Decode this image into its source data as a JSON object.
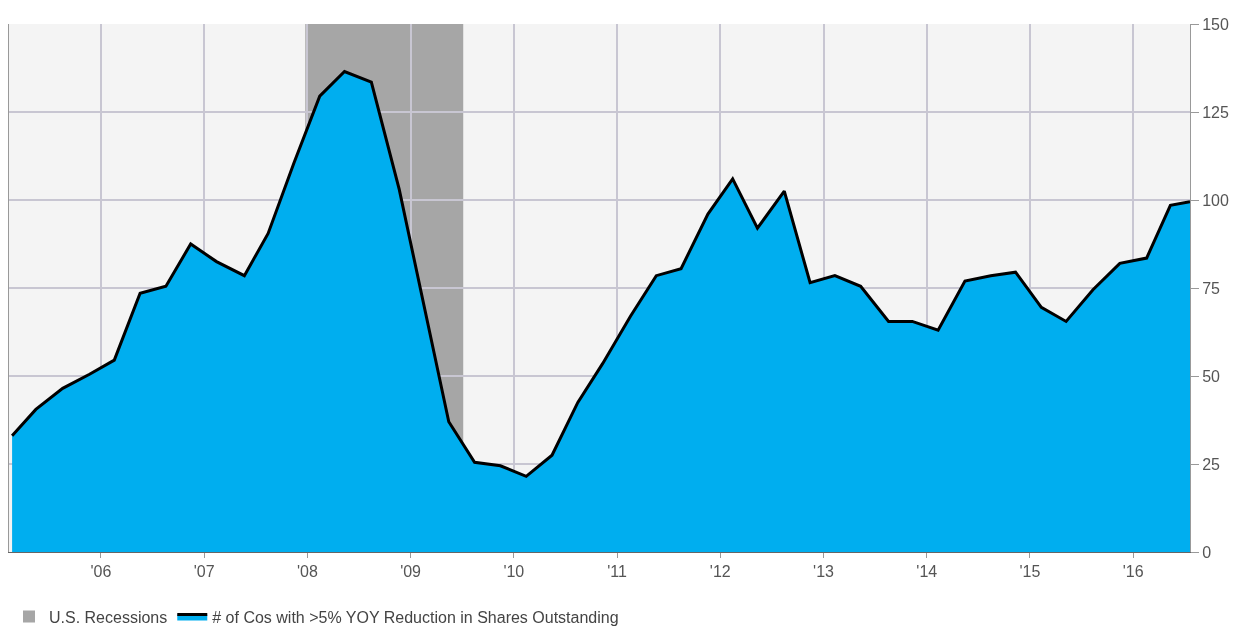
{
  "chart_data": {
    "type": "area",
    "x": [
      2005.14,
      2005.37,
      2005.63,
      2005.89,
      2006.13,
      2006.38,
      2006.63,
      2006.87,
      2007.12,
      2007.39,
      2007.62,
      2007.87,
      2008.12,
      2008.36,
      2008.62,
      2008.89,
      2009.37,
      2009.62,
      2009.87,
      2010.12,
      2010.37,
      2010.62,
      2010.86,
      2011.13,
      2011.38,
      2011.62,
      2011.88,
      2012.12,
      2012.36,
      2012.62,
      2012.87,
      2013.11,
      2013.36,
      2013.63,
      2013.86,
      2014.11,
      2014.37,
      2014.62,
      2014.86,
      2015.11,
      2015.35,
      2015.61,
      2015.87,
      2016.13,
      2016.36,
      2016.55
    ],
    "series": [
      {
        "name": "# of Cos with >5% YOY Reduction in Shares Outstanding",
        "color": "#00aeef",
        "values": [
          33,
          40.5,
          46.5,
          50.5,
          54.5,
          73.5,
          75.5,
          87.5,
          82.5,
          78.5,
          90.5,
          110.5,
          129.5,
          136.5,
          133.5,
          103,
          37,
          25.5,
          24.5,
          21.5,
          27.5,
          42.5,
          53.5,
          67,
          78.5,
          80.5,
          96,
          106,
          92,
          102.5,
          76.5,
          78.5,
          75.5,
          65.5,
          65.5,
          63,
          77,
          78.5,
          79.5,
          69.5,
          65.5,
          74.5,
          82,
          83.5,
          98.5,
          99.5
        ]
      }
    ],
    "xlim": [
      2005.11,
      2016.55
    ],
    "xticks": [
      {
        "value": 2006,
        "label": "'06"
      },
      {
        "value": 2007,
        "label": "'07"
      },
      {
        "value": 2008,
        "label": "'08"
      },
      {
        "value": 2009,
        "label": "'09"
      },
      {
        "value": 2010,
        "label": "'10"
      },
      {
        "value": 2011,
        "label": "'11"
      },
      {
        "value": 2012,
        "label": "'12"
      },
      {
        "value": 2013,
        "label": "'13"
      },
      {
        "value": 2014,
        "label": "'14"
      },
      {
        "value": 2015,
        "label": "'15"
      },
      {
        "value": 2016,
        "label": "'16"
      }
    ],
    "ylim": [
      0,
      150
    ],
    "yticks": [
      0,
      25,
      50,
      75,
      100,
      125,
      150
    ],
    "bands": [
      {
        "axis": "x",
        "from": 2007.98,
        "to": 2009.51,
        "label": "U.S. Recessions",
        "color": "#a6a6a6"
      }
    ],
    "grid": true,
    "legend": "bottom left"
  }
}
